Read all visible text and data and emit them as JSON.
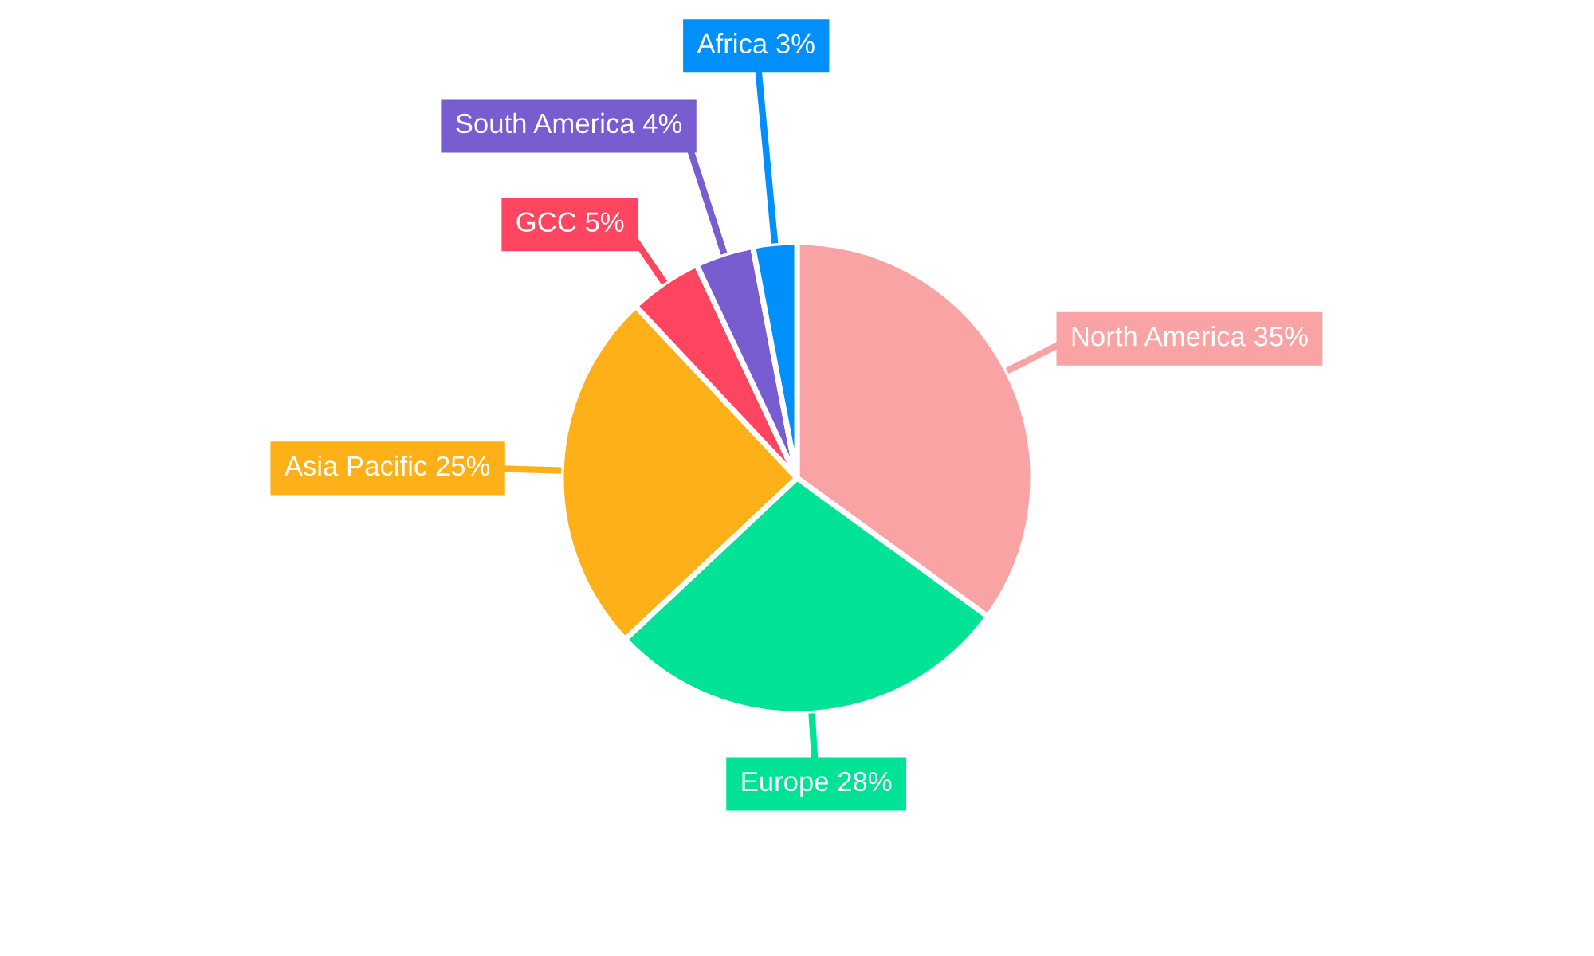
{
  "chart_data": {
    "type": "pie",
    "categories": [
      "North America",
      "Europe",
      "Asia Pacific",
      "GCC",
      "South America",
      "Africa"
    ],
    "values": [
      35,
      28,
      25,
      5,
      4,
      3
    ],
    "colors": [
      "#f9a3a4",
      "#00e396",
      "#feb019",
      "#ff4560",
      "#775dd0",
      "#008ffb"
    ],
    "value_labels": [
      "35%",
      "28%",
      "25%",
      "5%",
      "4%",
      "3%"
    ],
    "legend": false
  }
}
